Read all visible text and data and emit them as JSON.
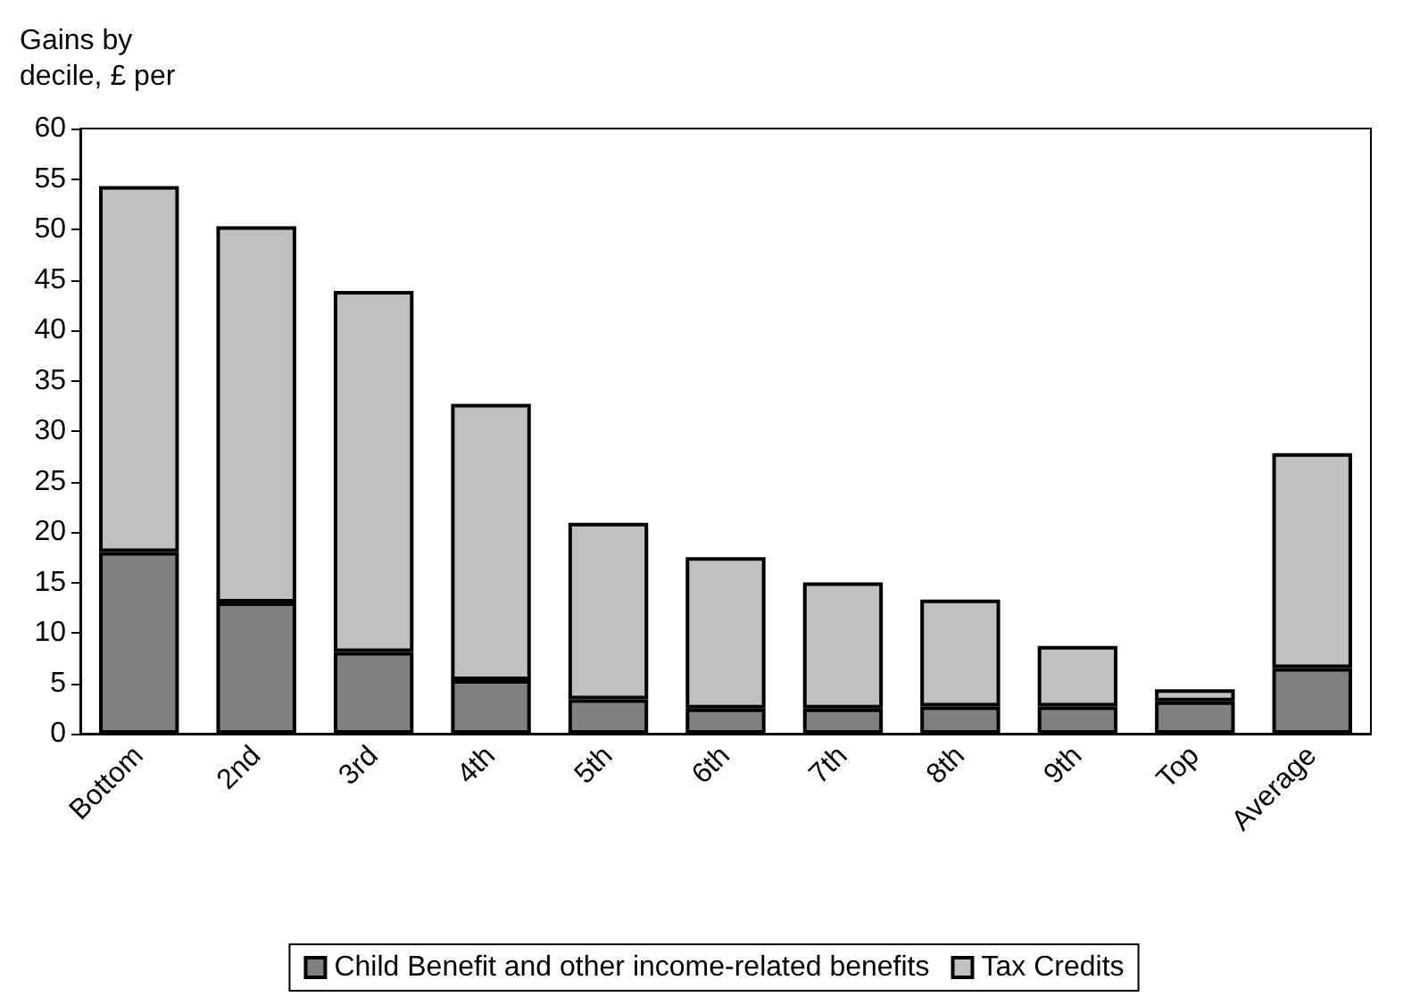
{
  "chart_data": {
    "type": "bar",
    "stacked": true,
    "ylabel": "Gains by decile, £ per",
    "categories": [
      "Bottom",
      "2nd",
      "3rd",
      "4th",
      "5th",
      "6th",
      "7th",
      "8th",
      "9th",
      "Top",
      "Average"
    ],
    "series": [
      {
        "name": "Child Benefit and other income-related benefits",
        "color": "#808080",
        "values": [
          18,
          13,
          8.1,
          5.3,
          3.4,
          2.5,
          2.5,
          2.7,
          2.7,
          3.2,
          6.5
        ]
      },
      {
        "name": "Tax Credits",
        "color": "#c0c0c0",
        "values": [
          36.3,
          37.3,
          35.8,
          27.4,
          17.5,
          15,
          12.5,
          10.6,
          6,
          1.2,
          21.3
        ]
      }
    ],
    "ylim": [
      0,
      60
    ],
    "yticks": [
      0,
      5,
      10,
      15,
      20,
      25,
      30,
      35,
      40,
      45,
      50,
      55,
      60
    ],
    "grid": false,
    "legend": "bottom"
  }
}
